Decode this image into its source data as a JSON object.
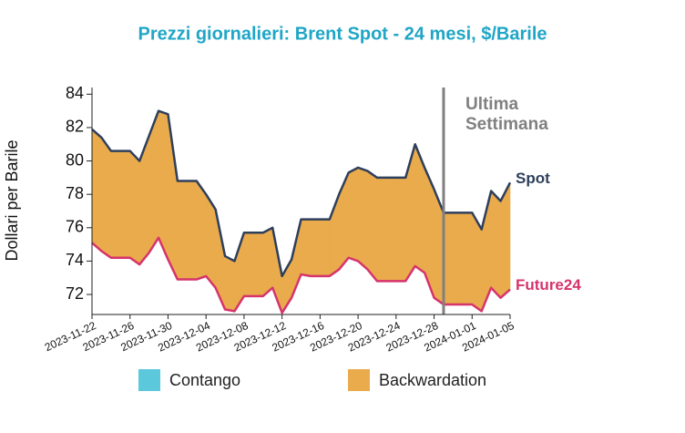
{
  "chart_data": {
    "type": "line",
    "title": "Prezzi giornalieri: Brent Spot - 24 mesi, $/Barile",
    "y_label": "Dollari per Barile",
    "x": [
      "2023-11-22",
      "2023-11-23",
      "2023-11-24",
      "2023-11-25",
      "2023-11-26",
      "2023-11-27",
      "2023-11-28",
      "2023-11-29",
      "2023-11-30",
      "2023-12-01",
      "2023-12-02",
      "2023-12-03",
      "2023-12-04",
      "2023-12-05",
      "2023-12-06",
      "2023-12-07",
      "2023-12-08",
      "2023-12-09",
      "2023-12-10",
      "2023-12-11",
      "2023-12-12",
      "2023-12-13",
      "2023-12-14",
      "2023-12-15",
      "2023-12-16",
      "2023-12-17",
      "2023-12-18",
      "2023-12-19",
      "2023-12-20",
      "2023-12-21",
      "2023-12-22",
      "2023-12-23",
      "2023-12-24",
      "2023-12-25",
      "2023-12-26",
      "2023-12-27",
      "2023-12-28",
      "2023-12-29",
      "2023-12-30",
      "2023-12-31",
      "2024-01-01",
      "2024-01-02",
      "2024-01-03",
      "2024-01-04",
      "2024-01-05"
    ],
    "xticks": [
      "2023-11-22",
      "2023-11-26",
      "2023-11-30",
      "2023-12-04",
      "2023-12-08",
      "2023-12-12",
      "2023-12-16",
      "2023-12-20",
      "2023-12-24",
      "2023-12-28",
      "2024-01-01",
      "2024-01-05"
    ],
    "ylim": [
      70.8,
      84.4
    ],
    "yticks": [
      72,
      74,
      76,
      78,
      80,
      82,
      84
    ],
    "series": [
      {
        "name": "Spot",
        "color": "#2e3f5c",
        "values": [
          81.9,
          81.4,
          80.6,
          80.6,
          80.6,
          80.0,
          81.5,
          83.0,
          82.8,
          78.8,
          78.8,
          78.8,
          78.0,
          77.1,
          74.3,
          74.0,
          75.7,
          75.7,
          75.7,
          76.0,
          73.1,
          74.1,
          76.5,
          76.5,
          76.5,
          76.5,
          78.0,
          79.3,
          79.6,
          79.4,
          79.0,
          79.0,
          79.0,
          79.0,
          81.0,
          79.6,
          78.3,
          76.9,
          76.9,
          76.9,
          76.9,
          75.9,
          78.2,
          77.6,
          78.7
        ]
      },
      {
        "name": "Future24",
        "color": "#d6336c",
        "values": [
          75.1,
          74.6,
          74.2,
          74.2,
          74.2,
          73.8,
          74.5,
          75.4,
          74.1,
          72.9,
          72.9,
          72.9,
          73.1,
          72.4,
          71.1,
          71.0,
          71.9,
          71.9,
          71.9,
          72.4,
          70.9,
          71.8,
          73.2,
          73.1,
          73.1,
          73.1,
          73.5,
          74.2,
          74.0,
          73.5,
          72.8,
          72.8,
          72.8,
          72.8,
          73.7,
          73.3,
          71.8,
          71.4,
          71.4,
          71.4,
          71.4,
          71.0,
          72.4,
          71.8,
          72.3
        ]
      }
    ],
    "fill_legend": [
      {
        "name": "Contango",
        "color": "#5bc8dc"
      },
      {
        "name": "Backwardation",
        "color": "#e9ab4c"
      }
    ],
    "annotation": {
      "x": "2023-12-29",
      "lines": [
        "Ultima",
        "Settimana"
      ],
      "color": "#808080"
    }
  }
}
